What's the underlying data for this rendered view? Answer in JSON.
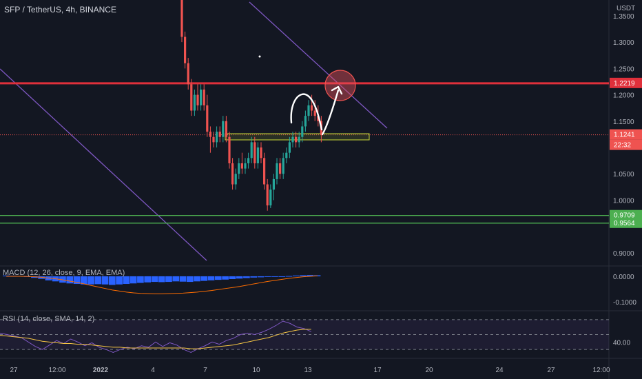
{
  "header": {
    "title": "SFP / TetherUS, 4h, BINANCE"
  },
  "colors": {
    "background": "#131722",
    "up": "#26a69a",
    "down": "#ef5350",
    "resistance": "#e0303b",
    "support": "#4caf50",
    "trendline": "#7e57c2",
    "macd_hist": "#2962ff",
    "rsi_line": "#7e57c2",
    "rsi_ma": "#f7c744",
    "text": "#b2b5be"
  },
  "chart_data": {
    "type": "candlestick",
    "price_axis": {
      "currency": "USDT",
      "ticks": [
        "1.3500",
        "1.3000",
        "1.2500",
        "1.2000",
        "1.1500",
        "1.0500",
        "1.0000",
        "0.9000"
      ],
      "ylim": [
        0.875,
        1.38
      ]
    },
    "x_axis": {
      "ticks": [
        "27",
        "12:00",
        "2022",
        "4",
        "7",
        "10",
        "13",
        "17",
        "20",
        "24",
        "27",
        "12:00"
      ]
    },
    "price_labels": [
      {
        "text": "1.2219",
        "value": 1.2219,
        "color": "#e0303b"
      },
      {
        "text": "1.1241",
        "value": 1.1241,
        "color": "#ef5350"
      },
      {
        "text": "22:32",
        "value": 1.1241,
        "color": "#ef5350",
        "countdown": true
      },
      {
        "text": "0.9709",
        "value": 0.9709,
        "color": "#4caf50"
      },
      {
        "text": "0.9564",
        "value": 0.9564,
        "color": "#4caf50"
      }
    ],
    "horizontal_levels": [
      {
        "value": 1.2219,
        "color": "#e0303b",
        "role": "resistance"
      },
      {
        "value": 0.9709,
        "color": "#4caf50",
        "role": "support"
      },
      {
        "value": 0.9564,
        "color": "#4caf50",
        "role": "support"
      },
      {
        "value": 1.1241,
        "color": "#ef5350",
        "role": "last-price",
        "dotted": true
      }
    ],
    "candles": [
      [
        1.45,
        1.46,
        1.3,
        1.31
      ],
      [
        1.31,
        1.32,
        1.25,
        1.26
      ],
      [
        1.26,
        1.27,
        1.21,
        1.22
      ],
      [
        1.22,
        1.23,
        1.16,
        1.17
      ],
      [
        1.17,
        1.21,
        1.16,
        1.2
      ],
      [
        1.2,
        1.22,
        1.17,
        1.18
      ],
      [
        1.18,
        1.22,
        1.17,
        1.21
      ],
      [
        1.21,
        1.22,
        1.17,
        1.18
      ],
      [
        1.18,
        1.2,
        1.12,
        1.13
      ],
      [
        1.13,
        1.14,
        1.09,
        1.12
      ],
      [
        1.12,
        1.13,
        1.1,
        1.11
      ],
      [
        1.11,
        1.14,
        1.1,
        1.13
      ],
      [
        1.13,
        1.14,
        1.11,
        1.12
      ],
      [
        1.12,
        1.16,
        1.11,
        1.15
      ],
      [
        1.15,
        1.16,
        1.11,
        1.12
      ],
      [
        1.12,
        1.13,
        1.06,
        1.07
      ],
      [
        1.07,
        1.08,
        1.02,
        1.03
      ],
      [
        1.03,
        1.06,
        1.02,
        1.05
      ],
      [
        1.05,
        1.08,
        1.04,
        1.07
      ],
      [
        1.07,
        1.09,
        1.05,
        1.06
      ],
      [
        1.06,
        1.08,
        1.05,
        1.07
      ],
      [
        1.07,
        1.09,
        1.06,
        1.08
      ],
      [
        1.08,
        1.12,
        1.07,
        1.11
      ],
      [
        1.11,
        1.12,
        1.06,
        1.07
      ],
      [
        1.07,
        1.11,
        1.06,
        1.1
      ],
      [
        1.1,
        1.11,
        1.07,
        1.08
      ],
      [
        1.08,
        1.09,
        1.02,
        1.03
      ],
      [
        1.03,
        1.04,
        0.98,
        0.99
      ],
      [
        0.99,
        1.03,
        0.985,
        1.02
      ],
      [
        1.02,
        1.05,
        1.0,
        1.04
      ],
      [
        1.04,
        1.08,
        1.03,
        1.07
      ],
      [
        1.07,
        1.08,
        1.04,
        1.05
      ],
      [
        1.05,
        1.09,
        1.04,
        1.08
      ],
      [
        1.08,
        1.1,
        1.07,
        1.09
      ],
      [
        1.09,
        1.12,
        1.08,
        1.11
      ],
      [
        1.11,
        1.13,
        1.1,
        1.12
      ],
      [
        1.12,
        1.13,
        1.1,
        1.11
      ],
      [
        1.11,
        1.13,
        1.1,
        1.12
      ],
      [
        1.12,
        1.15,
        1.11,
        1.14
      ],
      [
        1.14,
        1.17,
        1.13,
        1.16
      ],
      [
        1.16,
        1.19,
        1.15,
        1.18
      ],
      [
        1.18,
        1.2,
        1.16,
        1.17
      ],
      [
        1.17,
        1.19,
        1.15,
        1.16
      ],
      [
        1.16,
        1.18,
        1.14,
        1.15
      ],
      [
        1.15,
        1.16,
        1.11,
        1.1241
      ]
    ],
    "macd": {
      "label": "MACD (12, 26, close, 9, EMA, EMA)",
      "ticks": [
        "0.0000",
        "-0.1000"
      ],
      "ylim": [
        -0.13,
        0.035
      ],
      "hist": [
        0.003,
        0.002,
        0.001,
        -0.002,
        -0.006,
        -0.01,
        -0.016,
        -0.02,
        -0.025,
        -0.028,
        -0.03,
        -0.032,
        -0.032,
        -0.031,
        -0.032,
        -0.034,
        -0.032,
        -0.03,
        -0.028,
        -0.026,
        -0.024,
        -0.022,
        -0.023,
        -0.022,
        -0.02,
        -0.021,
        -0.022,
        -0.02,
        -0.018,
        -0.016,
        -0.014,
        -0.013,
        -0.011,
        -0.009,
        -0.007,
        -0.005,
        -0.004,
        -0.002,
        -0.001,
        0.0,
        0.001,
        0.003,
        0.004,
        0.005,
        0.004
      ],
      "signal": [
        0.0,
        0.0,
        0.0,
        -0.001,
        -0.002,
        -0.004,
        -0.007,
        -0.01,
        -0.014,
        -0.019,
        -0.024,
        -0.03,
        -0.036,
        -0.042,
        -0.048,
        -0.054,
        -0.058,
        -0.062,
        -0.065,
        -0.067,
        -0.068,
        -0.069,
        -0.069,
        -0.068,
        -0.067,
        -0.066,
        -0.064,
        -0.062,
        -0.059,
        -0.056,
        -0.052,
        -0.048,
        -0.044,
        -0.04,
        -0.035,
        -0.03,
        -0.025,
        -0.02,
        -0.016,
        -0.012,
        -0.008,
        -0.005,
        -0.002,
        0.0,
        0.002
      ]
    },
    "rsi": {
      "label": "RSI (14, close, SMA, 14, 2)",
      "ticks": [
        "40.00"
      ],
      "bands": [
        70,
        50,
        30
      ],
      "ylim": [
        20,
        80
      ],
      "values": [
        52,
        50,
        48,
        46,
        40,
        34,
        30,
        36,
        42,
        38,
        44,
        40,
        35,
        39,
        33,
        30,
        26,
        30,
        33,
        31,
        35,
        33,
        40,
        34,
        39,
        36,
        30,
        26,
        31,
        35,
        40,
        37,
        42,
        45,
        50,
        52,
        50,
        53,
        57,
        62,
        68,
        65,
        60,
        58,
        54
      ],
      "ma": [
        49,
        48,
        47,
        46,
        45,
        43,
        41,
        40,
        39,
        38,
        38,
        37,
        37,
        36,
        35,
        34,
        33,
        33,
        32,
        32,
        32,
        32,
        32,
        32,
        32,
        32,
        32,
        31,
        31,
        32,
        33,
        34,
        35,
        36,
        38,
        40,
        42,
        44,
        46,
        49,
        52,
        54,
        56,
        57,
        57
      ]
    }
  }
}
